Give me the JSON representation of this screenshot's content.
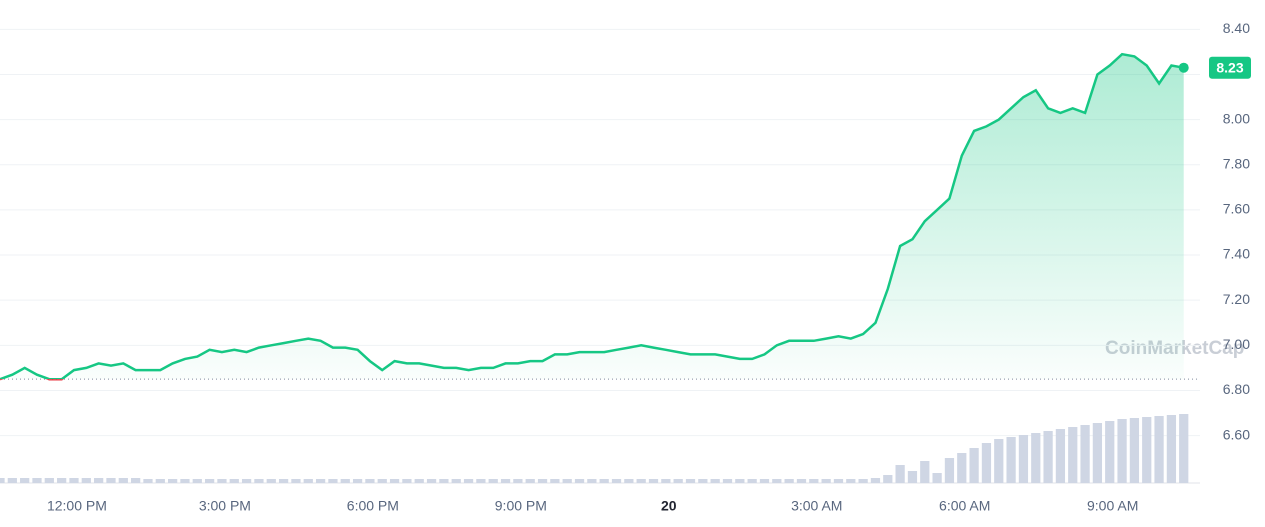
{
  "chart_data": {
    "type": "line",
    "watermark": "CoinMarketCap",
    "color": "#16c784",
    "down_color": "#ea3943",
    "baseline": 6.85,
    "current_price": 8.23,
    "xlim": [
      10.44,
      34.77
    ],
    "ylim": [
      6.39,
      8.53
    ],
    "yticks": [
      {
        "value": 6.6,
        "label": "6.60"
      },
      {
        "value": 6.8,
        "label": "6.80"
      },
      {
        "value": 7.0,
        "label": "7.00"
      },
      {
        "value": 7.2,
        "label": "7.20"
      },
      {
        "value": 7.4,
        "label": "7.40"
      },
      {
        "value": 7.6,
        "label": "7.60"
      },
      {
        "value": 7.8,
        "label": "7.80"
      },
      {
        "value": 8.0,
        "label": "8.00"
      },
      {
        "value": 8.2,
        "label": "8.20"
      },
      {
        "value": 8.4,
        "label": "8.40"
      }
    ],
    "xticks": [
      {
        "value": 12,
        "label": "12:00 PM"
      },
      {
        "value": 15,
        "label": "3:00 PM"
      },
      {
        "value": 18,
        "label": "6:00 PM"
      },
      {
        "value": 21,
        "label": "9:00 PM"
      },
      {
        "value": 24,
        "label": "20"
      },
      {
        "value": 27,
        "label": "3:00 AM"
      },
      {
        "value": 30,
        "label": "6:00 AM"
      },
      {
        "value": 33,
        "label": "9:00 AM"
      }
    ],
    "grid": true,
    "x": [
      10.44,
      10.69,
      10.94,
      11.19,
      11.44,
      11.69,
      11.94,
      12.19,
      12.44,
      12.69,
      12.94,
      13.19,
      13.44,
      13.69,
      13.94,
      14.19,
      14.44,
      14.69,
      14.94,
      15.19,
      15.44,
      15.69,
      15.94,
      16.19,
      16.44,
      16.69,
      16.94,
      17.19,
      17.44,
      17.69,
      17.94,
      18.19,
      18.44,
      18.69,
      18.94,
      19.19,
      19.44,
      19.69,
      19.94,
      20.19,
      20.44,
      20.69,
      20.94,
      21.19,
      21.44,
      21.69,
      21.94,
      22.19,
      22.44,
      22.69,
      22.94,
      23.19,
      23.44,
      23.69,
      23.94,
      24.19,
      24.44,
      24.69,
      24.94,
      25.19,
      25.44,
      25.69,
      25.94,
      26.19,
      26.44,
      26.69,
      26.94,
      27.19,
      27.44,
      27.69,
      27.94,
      28.19,
      28.44,
      28.69,
      28.94,
      29.19,
      29.44,
      29.69,
      29.94,
      30.19,
      30.44,
      30.69,
      30.94,
      31.19,
      31.44,
      31.69,
      31.94,
      32.19,
      32.44,
      32.69,
      32.94,
      33.19,
      33.44,
      33.69,
      33.94,
      34.19,
      34.44
    ],
    "values": [
      6.85,
      6.87,
      6.9,
      6.87,
      6.85,
      6.85,
      6.89,
      6.9,
      6.92,
      6.91,
      6.92,
      6.89,
      6.89,
      6.89,
      6.92,
      6.94,
      6.95,
      6.98,
      6.97,
      6.98,
      6.97,
      6.99,
      7.0,
      7.01,
      7.02,
      7.03,
      7.02,
      6.99,
      6.99,
      6.98,
      6.93,
      6.89,
      6.93,
      6.92,
      6.92,
      6.91,
      6.9,
      6.9,
      6.89,
      6.9,
      6.9,
      6.92,
      6.92,
      6.93,
      6.93,
      6.96,
      6.96,
      6.97,
      6.97,
      6.97,
      6.98,
      6.99,
      7.0,
      6.99,
      6.98,
      6.97,
      6.96,
      6.96,
      6.96,
      6.95,
      6.94,
      6.94,
      6.96,
      7.0,
      7.02,
      7.02,
      7.02,
      7.03,
      7.04,
      7.03,
      7.05,
      7.1,
      7.25,
      7.44,
      7.47,
      7.55,
      7.6,
      7.65,
      7.84,
      7.95,
      7.97,
      8.0,
      8.05,
      8.1,
      8.13,
      8.05,
      8.03,
      8.05,
      8.03,
      8.2,
      8.24,
      8.29,
      8.28,
      8.24,
      8.16,
      8.24,
      8.23
    ],
    "volume": [
      5,
      5,
      5,
      5,
      5,
      5,
      5,
      5,
      5,
      5,
      5,
      5,
      4,
      4,
      4,
      4,
      4,
      4,
      4,
      4,
      4,
      4,
      4,
      4,
      4,
      4,
      4,
      4,
      4,
      4,
      4,
      4,
      4,
      4,
      4,
      4,
      4,
      4,
      4,
      4,
      4,
      4,
      4,
      4,
      4,
      4,
      4,
      4,
      4,
      4,
      4,
      4,
      4,
      4,
      4,
      4,
      4,
      4,
      4,
      4,
      4,
      4,
      4,
      4,
      4,
      4,
      4,
      4,
      4,
      4,
      4,
      5,
      8,
      18,
      12,
      22,
      10,
      25,
      30,
      35,
      40,
      44,
      46,
      48,
      50,
      52,
      54,
      56,
      58,
      60,
      62,
      64,
      65,
      66,
      67,
      68,
      69
    ]
  }
}
